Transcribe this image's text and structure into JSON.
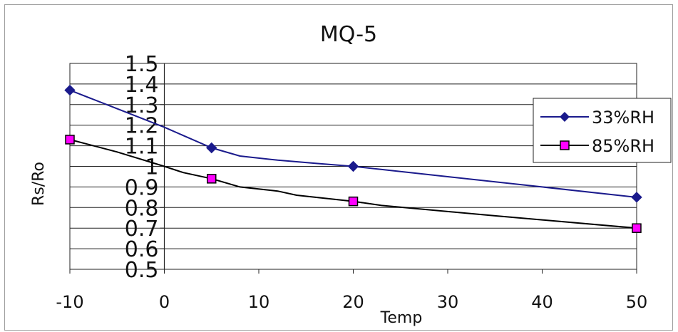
{
  "chart_data": {
    "type": "line",
    "title": "MQ-5",
    "xlabel": "Temp",
    "ylabel": "Rs/Ro",
    "xlim": [
      -10,
      50
    ],
    "ylim": [
      0.5,
      1.5
    ],
    "xticks": [
      "-10",
      "0",
      "10",
      "20",
      "30",
      "40",
      "50"
    ],
    "yticks": [
      "1.5",
      "1.4",
      "1.3",
      "1.2",
      "1.1",
      "1",
      "0.9",
      "0.8",
      "0.7",
      "0.6",
      "0.5"
    ],
    "grid": "horizontal",
    "legend_position": "right",
    "series": [
      {
        "name": "33%RH",
        "color": "#1a1a8c",
        "marker": "diamond",
        "points": [
          [
            -10,
            1.37
          ],
          [
            5,
            1.09
          ],
          [
            20,
            1.0
          ],
          [
            50,
            0.85
          ]
        ],
        "curve": [
          [
            -10,
            1.37
          ],
          [
            -5,
            1.28
          ],
          [
            0,
            1.19
          ],
          [
            2,
            1.15
          ],
          [
            5,
            1.09
          ],
          [
            8,
            1.05
          ],
          [
            12,
            1.03
          ],
          [
            16,
            1.015
          ],
          [
            20,
            1.0
          ],
          [
            30,
            0.95
          ],
          [
            40,
            0.9
          ],
          [
            50,
            0.85
          ]
        ]
      },
      {
        "name": "85%RH",
        "color": "#000000",
        "marker": "square",
        "marker_fill": "#ff00ff",
        "points": [
          [
            -10,
            1.13
          ],
          [
            5,
            0.94
          ],
          [
            20,
            0.83
          ],
          [
            50,
            0.7
          ]
        ],
        "curve": [
          [
            -10,
            1.13
          ],
          [
            -5,
            1.07
          ],
          [
            0,
            1.0
          ],
          [
            2,
            0.97
          ],
          [
            5,
            0.94
          ],
          [
            8,
            0.9
          ],
          [
            12,
            0.88
          ],
          [
            14,
            0.86
          ],
          [
            20,
            0.83
          ],
          [
            23,
            0.81
          ],
          [
            35,
            0.76
          ],
          [
            50,
            0.7
          ]
        ]
      }
    ]
  }
}
